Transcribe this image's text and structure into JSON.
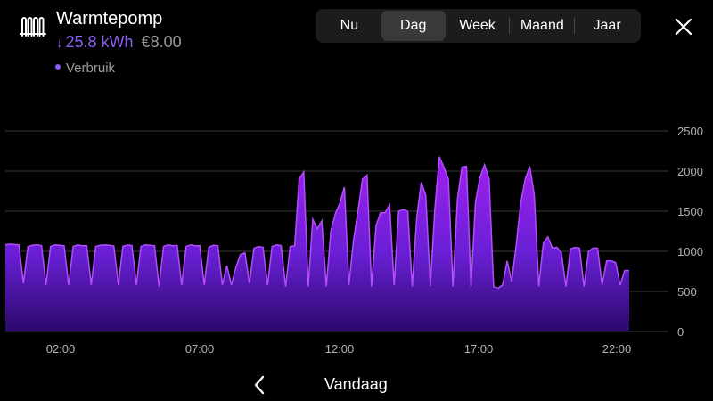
{
  "header": {
    "title": "Warmtepomp",
    "arrow_icon": "arrow-down-icon",
    "energy": "25.8 kWh",
    "cost": "€8.00",
    "legend_label": "Verbruik",
    "device_icon": "radiator-icon"
  },
  "tabs": [
    {
      "label": "Nu",
      "active": false
    },
    {
      "label": "Dag",
      "active": true
    },
    {
      "label": "Week",
      "active": false
    },
    {
      "label": "Maand",
      "active": false
    },
    {
      "label": "Jaar",
      "active": false
    }
  ],
  "close_icon": "close-icon",
  "footer": {
    "back_icon": "chevron-left-icon",
    "label": "Vandaag"
  },
  "colors": {
    "accent": "#8b5cf6",
    "area_top": "#9b30ff",
    "area_bottom": "#2a0a6b",
    "grid": "#3a3a3c",
    "text_muted": "#9a9a9a"
  },
  "chart_data": {
    "type": "area",
    "series": [
      {
        "name": "Verbruik",
        "unit": "W",
        "values": [
          1080,
          1090,
          1085,
          1080,
          600,
          1060,
          1075,
          1080,
          1070,
          580,
          1060,
          1080,
          1075,
          1070,
          580,
          1060,
          1080,
          1070,
          1070,
          580,
          1060,
          1075,
          1080,
          1075,
          1065,
          580,
          1060,
          1080,
          1070,
          580,
          1060,
          1080,
          1075,
          1070,
          560,
          1060,
          1080,
          1070,
          1075,
          580,
          1060,
          1080,
          1070,
          1070,
          580,
          1050,
          1075,
          1070,
          580,
          820,
          580,
          800,
          960,
          980,
          600,
          1040,
          1060,
          1050,
          580,
          1060,
          1080,
          1070,
          560,
          1060,
          1070,
          1900,
          1990,
          560,
          1400,
          1280,
          1380,
          560,
          1250,
          1470,
          1600,
          1800,
          580,
          1130,
          1500,
          1900,
          1950,
          560,
          1320,
          1480,
          1480,
          1580,
          580,
          1500,
          1520,
          1500,
          560,
          1420,
          1860,
          1700,
          570,
          1520,
          2180,
          2050,
          1900,
          560,
          1650,
          2050,
          2060,
          560,
          1620,
          1920,
          2080,
          1900,
          560,
          540,
          580,
          880,
          620,
          1080,
          1600,
          1900,
          2060,
          1700,
          560,
          1100,
          1180,
          1040,
          1050,
          980,
          560,
          1030,
          1050,
          1040,
          560,
          1000,
          1040,
          1040,
          580,
          880,
          880,
          860,
          580,
          760,
          760
        ]
      }
    ],
    "x_tick_labels": [
      "02:00",
      "07:00",
      "12:00",
      "17:00",
      "22:00"
    ],
    "y_tick_labels": [
      "0",
      "500",
      "1000",
      "1500",
      "2000",
      "2500"
    ],
    "ylim": [
      0,
      2500
    ],
    "xlabel": "",
    "ylabel": "",
    "grid": true,
    "y_axis_position": "right"
  }
}
